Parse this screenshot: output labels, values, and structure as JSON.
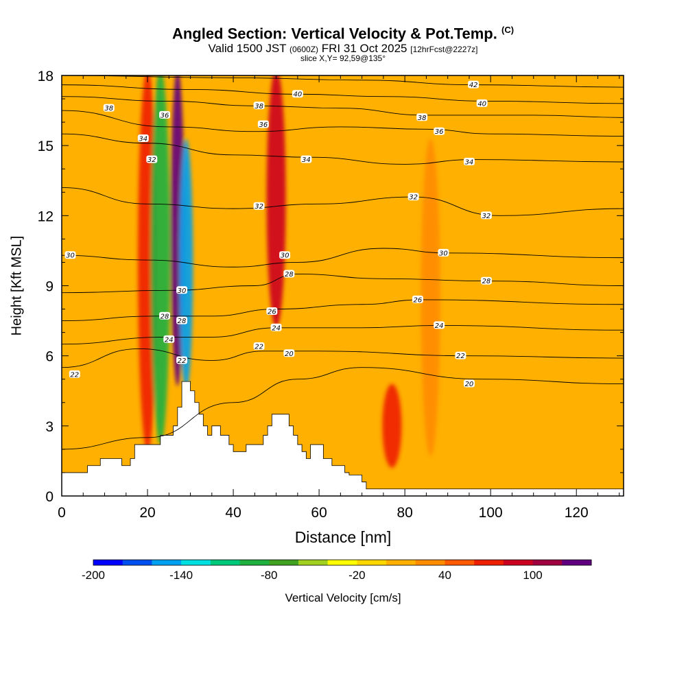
{
  "header": {
    "title": "Angled Section: Vertical Velocity & Pot.Temp.",
    "title_tag": "(C)",
    "valid_prefix": "Valid 1500 JST",
    "valid_z": "(0600Z)",
    "valid_date": "FRI 31 Oct 2025",
    "valid_fcst": "[12hrFcst@2227z]",
    "slice": "slice X,Y= 92,59@135°"
  },
  "chart_data": {
    "type": "heatmap",
    "title": "Angled Section: Vertical Velocity & Pot.Temp.",
    "xlabel": "Distance [nm]",
    "ylabel": "Height [Kft MSL]",
    "xlim": [
      0,
      131
    ],
    "ylim": [
      0,
      18
    ],
    "x_ticks": [
      0,
      20,
      40,
      60,
      80,
      100,
      120
    ],
    "y_ticks": [
      0,
      3,
      6,
      9,
      12,
      15,
      18
    ],
    "colorbar": {
      "label": "Vertical Velocity [cm/s]",
      "min": -200,
      "max": 140,
      "step": 20,
      "tick_labels": [
        -200,
        -140,
        -80,
        -20,
        40,
        100
      ],
      "colors": [
        "#0000ff",
        "#0050f0",
        "#00a0f0",
        "#00e0e0",
        "#00c87a",
        "#20b040",
        "#40a020",
        "#a0d020",
        "#ffff00",
        "#ffd700",
        "#ffb000",
        "#ff8c00",
        "#ff5a00",
        "#ee2000",
        "#cc0020",
        "#a00040",
        "#600080"
      ]
    },
    "velocity_features": [
      {
        "x": 20,
        "zbottom": 2.2,
        "ztop": 18,
        "value": 60,
        "label": "updraft"
      },
      {
        "x": 23,
        "zbottom": 2.5,
        "ztop": 18,
        "value": -90,
        "label": "downdraft"
      },
      {
        "x": 27,
        "zbottom": 5.0,
        "ztop": 18,
        "value": 130,
        "label": "strong updraft"
      },
      {
        "x": 29,
        "zbottom": 4.8,
        "ztop": 15,
        "value": -160,
        "label": "strong downdraft"
      },
      {
        "x": 50,
        "zbottom": 7.5,
        "ztop": 18,
        "value": 90,
        "label": "updraft"
      },
      {
        "x": 77,
        "zbottom": 1.5,
        "ztop": 4.5,
        "value": 60,
        "label": "low-level updraft"
      },
      {
        "x": 86,
        "zbottom": 2.0,
        "ztop": 15,
        "value": 30,
        "label": "weak updraft"
      }
    ],
    "terrain": [
      [
        0,
        1.0
      ],
      [
        5,
        1.0
      ],
      [
        6,
        1.3
      ],
      [
        9,
        1.6
      ],
      [
        13,
        1.6
      ],
      [
        14,
        1.3
      ],
      [
        15,
        1.3
      ],
      [
        16,
        1.6
      ],
      [
        17,
        2.2
      ],
      [
        22,
        2.2
      ],
      [
        23,
        2.6
      ],
      [
        25,
        2.6
      ],
      [
        26,
        3.0
      ],
      [
        27,
        3.8
      ],
      [
        28,
        4.9
      ],
      [
        29,
        4.9
      ],
      [
        30,
        4.5
      ],
      [
        31,
        4.0
      ],
      [
        32,
        3.5
      ],
      [
        33,
        3.0
      ],
      [
        34,
        2.6
      ],
      [
        35,
        3.0
      ],
      [
        36,
        3.0
      ],
      [
        37,
        2.6
      ],
      [
        38,
        2.6
      ],
      [
        39,
        2.2
      ],
      [
        40,
        1.9
      ],
      [
        42,
        1.9
      ],
      [
        43,
        2.2
      ],
      [
        45,
        2.2
      ],
      [
        47,
        2.6
      ],
      [
        48,
        3.0
      ],
      [
        49,
        3.5
      ],
      [
        52,
        3.5
      ],
      [
        53,
        3.0
      ],
      [
        54,
        2.6
      ],
      [
        55,
        2.2
      ],
      [
        56,
        1.9
      ],
      [
        57,
        1.6
      ],
      [
        58,
        2.2
      ],
      [
        60,
        2.2
      ],
      [
        61,
        1.6
      ],
      [
        62,
        1.6
      ],
      [
        63,
        1.3
      ],
      [
        65,
        1.3
      ],
      [
        66,
        1.0
      ],
      [
        67,
        0.9
      ],
      [
        70,
        0.6
      ],
      [
        71,
        0.3
      ],
      [
        100,
        0.3
      ],
      [
        131,
        0.3
      ]
    ],
    "theta_contours": [
      {
        "level": 20,
        "points": [
          [
            0,
            2.0
          ],
          [
            20,
            2.5
          ],
          [
            40,
            4.0
          ],
          [
            55,
            5.0
          ],
          [
            70,
            5.5
          ],
          [
            98,
            5.0
          ],
          [
            131,
            4.8
          ]
        ],
        "label_at": [
          98,
          4.8
        ]
      },
      {
        "level": 22,
        "points": [
          [
            0,
            5.5
          ],
          [
            18,
            6.3
          ],
          [
            35,
            5.8
          ],
          [
            47,
            6.2
          ],
          [
            60,
            6.2
          ],
          [
            95,
            6.0
          ],
          [
            131,
            5.9
          ]
        ],
        "label_at": [
          93,
          6.1
        ]
      },
      {
        "level": 24,
        "points": [
          [
            0,
            6.5
          ],
          [
            24,
            6.8
          ],
          [
            35,
            6.8
          ],
          [
            50,
            7.2
          ],
          [
            70,
            7.2
          ],
          [
            88,
            7.3
          ],
          [
            131,
            7.1
          ]
        ],
        "label_at": [
          88,
          7.3
        ]
      },
      {
        "level": 26,
        "points": [
          [
            0,
            7.5
          ],
          [
            22,
            7.7
          ],
          [
            35,
            7.7
          ],
          [
            50,
            8.0
          ],
          [
            70,
            8.2
          ],
          [
            84,
            8.4
          ],
          [
            131,
            8.2
          ]
        ],
        "label_at": [
          84,
          8.4
        ]
      },
      {
        "level": 28,
        "points": [
          [
            0,
            8.7
          ],
          [
            25,
            8.8
          ],
          [
            45,
            9.0
          ],
          [
            55,
            9.5
          ],
          [
            75,
            9.3
          ],
          [
            100,
            9.2
          ],
          [
            131,
            9.0
          ]
        ],
        "label_at": [
          100,
          9.2
        ]
      },
      {
        "level": 30,
        "points": [
          [
            0,
            10.3
          ],
          [
            20,
            10.1
          ],
          [
            40,
            9.8
          ],
          [
            55,
            10.0
          ],
          [
            75,
            10.6
          ],
          [
            90,
            10.4
          ],
          [
            131,
            10.2
          ]
        ],
        "label_at": [
          90,
          10.4
        ]
      },
      {
        "level": 32,
        "points": [
          [
            0,
            13.2
          ],
          [
            20,
            12.5
          ],
          [
            40,
            12.3
          ],
          [
            60,
            12.5
          ],
          [
            82,
            12.8
          ],
          [
            102,
            12.0
          ],
          [
            131,
            12.3
          ]
        ],
        "label_at": [
          82,
          12.8
        ]
      },
      {
        "level": 34,
        "points": [
          [
            0,
            15.5
          ],
          [
            20,
            15.1
          ],
          [
            40,
            14.6
          ],
          [
            58,
            14.5
          ],
          [
            80,
            14.2
          ],
          [
            96,
            14.4
          ],
          [
            131,
            14.3
          ]
        ],
        "label_at": [
          96,
          14.4
        ]
      },
      {
        "level": 36,
        "points": [
          [
            0,
            16.5
          ],
          [
            25,
            15.8
          ],
          [
            45,
            15.6
          ],
          [
            65,
            15.8
          ],
          [
            85,
            15.7
          ],
          [
            100,
            15.5
          ],
          [
            131,
            15.4
          ]
        ],
        "label_at": [
          85,
          15.8
        ]
      },
      {
        "level": 38,
        "points": [
          [
            0,
            17.1
          ],
          [
            25,
            16.9
          ],
          [
            45,
            16.7
          ],
          [
            65,
            16.6
          ],
          [
            85,
            16.3
          ],
          [
            110,
            16.3
          ],
          [
            131,
            16.2
          ]
        ],
        "label_at": [
          85,
          16.3
        ]
      },
      {
        "level": 40,
        "points": [
          [
            0,
            17.6
          ],
          [
            30,
            17.4
          ],
          [
            55,
            17.2
          ],
          [
            75,
            17.1
          ],
          [
            100,
            16.9
          ],
          [
            131,
            16.8
          ]
        ],
        "label_at": [
          55,
          17.2
        ]
      },
      {
        "level": 42,
        "points": [
          [
            0,
            18.0
          ],
          [
            40,
            17.9
          ],
          [
            70,
            17.8
          ],
          [
            96,
            17.6
          ],
          [
            131,
            17.5
          ]
        ],
        "label_at": [
          96,
          17.7
        ]
      }
    ],
    "contour_labels": [
      {
        "text": "38",
        "x": 11,
        "y": 16.6
      },
      {
        "text": "36",
        "x": 24,
        "y": 16.3
      },
      {
        "text": "34",
        "x": 19,
        "y": 15.3
      },
      {
        "text": "32",
        "x": 21,
        "y": 14.4
      },
      {
        "text": "38",
        "x": 46,
        "y": 16.7
      },
      {
        "text": "36",
        "x": 47,
        "y": 15.9
      },
      {
        "text": "40",
        "x": 55,
        "y": 17.2
      },
      {
        "text": "34",
        "x": 57,
        "y": 14.4
      },
      {
        "text": "32",
        "x": 46,
        "y": 12.4
      },
      {
        "text": "30",
        "x": 2,
        "y": 10.3
      },
      {
        "text": "30",
        "x": 52,
        "y": 10.3
      },
      {
        "text": "28",
        "x": 53,
        "y": 9.5
      },
      {
        "text": "30",
        "x": 28,
        "y": 8.8
      },
      {
        "text": "28",
        "x": 28,
        "y": 7.5
      },
      {
        "text": "28",
        "x": 24,
        "y": 7.7
      },
      {
        "text": "24",
        "x": 25,
        "y": 6.7
      },
      {
        "text": "22",
        "x": 28,
        "y": 5.8
      },
      {
        "text": "26",
        "x": 49,
        "y": 7.9
      },
      {
        "text": "24",
        "x": 50,
        "y": 7.2
      },
      {
        "text": "22",
        "x": 46,
        "y": 6.4
      },
      {
        "text": "20",
        "x": 53,
        "y": 6.1
      },
      {
        "text": "22",
        "x": 3,
        "y": 5.2
      },
      {
        "text": "42",
        "x": 96,
        "y": 17.6
      },
      {
        "text": "40",
        "x": 98,
        "y": 16.8
      },
      {
        "text": "38",
        "x": 84,
        "y": 16.2
      },
      {
        "text": "36",
        "x": 88,
        "y": 15.6
      },
      {
        "text": "34",
        "x": 95,
        "y": 14.3
      },
      {
        "text": "32",
        "x": 82,
        "y": 12.8
      },
      {
        "text": "32",
        "x": 99,
        "y": 12.0
      },
      {
        "text": "30",
        "x": 89,
        "y": 10.4
      },
      {
        "text": "28",
        "x": 99,
        "y": 9.2
      },
      {
        "text": "26",
        "x": 83,
        "y": 8.4
      },
      {
        "text": "24",
        "x": 88,
        "y": 7.3
      },
      {
        "text": "22",
        "x": 93,
        "y": 6.0
      },
      {
        "text": "20",
        "x": 95,
        "y": 4.8
      }
    ]
  }
}
